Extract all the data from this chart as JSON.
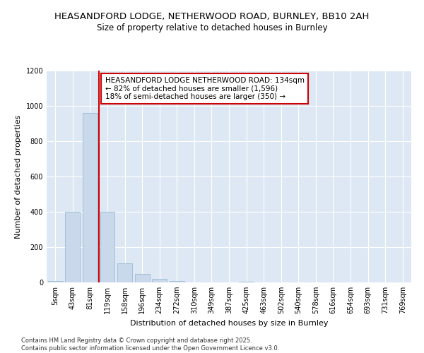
{
  "title1": "HEASANDFORD LODGE, NETHERWOOD ROAD, BURNLEY, BB10 2AH",
  "title2": "Size of property relative to detached houses in Burnley",
  "xlabel": "Distribution of detached houses by size in Burnley",
  "ylabel": "Number of detached properties",
  "bin_labels": [
    "5sqm",
    "43sqm",
    "81sqm",
    "119sqm",
    "158sqm",
    "196sqm",
    "234sqm",
    "272sqm",
    "310sqm",
    "349sqm",
    "387sqm",
    "425sqm",
    "463sqm",
    "502sqm",
    "540sqm",
    "578sqm",
    "616sqm",
    "654sqm",
    "693sqm",
    "731sqm",
    "769sqm"
  ],
  "bar_heights": [
    10,
    400,
    960,
    400,
    110,
    50,
    20,
    10,
    0,
    0,
    0,
    5,
    0,
    0,
    0,
    0,
    0,
    0,
    0,
    0,
    0
  ],
  "bar_color": "#c9d9eb",
  "bar_edge_color": "#9bbbd4",
  "vline_x": 2.5,
  "vline_color": "#cc0000",
  "annotation_text": "HEASANDFORD LODGE NETHERWOOD ROAD: 134sqm\n← 82% of detached houses are smaller (1,596)\n18% of semi-detached houses are larger (350) →",
  "annotation_box_color": "#ffffff",
  "annotation_box_edge": "#cc0000",
  "ylim": [
    0,
    1200
  ],
  "yticks": [
    0,
    200,
    400,
    600,
    800,
    1000,
    1200
  ],
  "bg_color": "#dde8f4",
  "footnote": "Contains HM Land Registry data © Crown copyright and database right 2025.\nContains public sector information licensed under the Open Government Licence v3.0.",
  "title_fontsize": 9.5,
  "subtitle_fontsize": 8.5,
  "axis_label_fontsize": 8,
  "tick_fontsize": 7,
  "annotation_fontsize": 7.5,
  "footnote_fontsize": 6
}
